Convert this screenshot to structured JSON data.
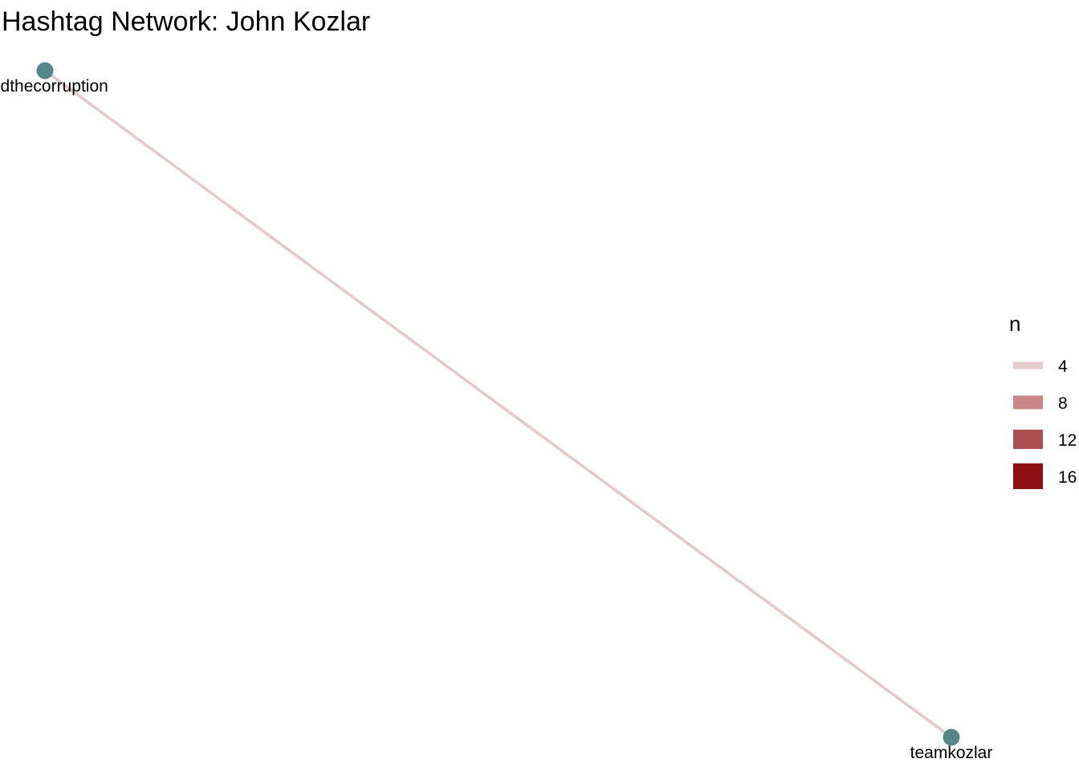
{
  "title": "Hashtag Network: John Kozlar",
  "nodes": [
    {
      "id": "endthecorruption",
      "label": "endthecorruption",
      "color": "#568788"
    },
    {
      "id": "teamkozlar",
      "label": "teamkozlar",
      "color": "#568788"
    }
  ],
  "edges": [
    {
      "from": "endthecorruption",
      "to": "teamkozlar",
      "n": 4
    }
  ],
  "legend": {
    "title": "n",
    "items": [
      {
        "label": "4",
        "value": 4,
        "color": "#e4cacb"
      },
      {
        "label": "8",
        "value": 8,
        "color": "#c98788"
      },
      {
        "label": "12",
        "value": 12,
        "color": "#ad4e50"
      },
      {
        "label": "16",
        "value": 16,
        "color": "#8f1013"
      }
    ]
  }
}
